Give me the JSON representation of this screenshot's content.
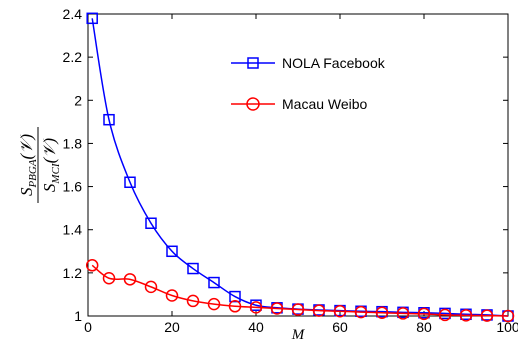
{
  "chart_data": {
    "type": "line",
    "xlabel": "M",
    "ylabel": {
      "numerator": {
        "base": "S",
        "sub": "PBGA",
        "arg": "(𝒱)"
      },
      "denominator": {
        "base": "S",
        "sub": "MCI",
        "arg": "(𝒱)"
      }
    },
    "xlim": [
      0,
      100
    ],
    "ylim": [
      1,
      2.4
    ],
    "xticks": [
      0,
      20,
      40,
      60,
      80,
      100
    ],
    "yticks": [
      1,
      1.2,
      1.4,
      1.6,
      1.8,
      2,
      2.2,
      2.4
    ],
    "xtick_labels": [
      "0",
      "20",
      "40",
      "60",
      "80",
      "100"
    ],
    "ytick_labels": [
      "1",
      "1.2",
      "1.4",
      "1.6",
      "1.8",
      "2",
      "2.2",
      "2.4"
    ],
    "grid": false,
    "legend_position": "upper-right",
    "series": [
      {
        "name": "NOLA Facebook",
        "color": "#0000ff",
        "marker": "square",
        "x": [
          1,
          5,
          10,
          15,
          20,
          25,
          30,
          35,
          40,
          45,
          50,
          55,
          60,
          65,
          70,
          75,
          80,
          85,
          90,
          95,
          100
        ],
        "values": [
          2.38,
          1.91,
          1.62,
          1.43,
          1.3,
          1.22,
          1.155,
          1.09,
          1.05,
          1.038,
          1.032,
          1.028,
          1.025,
          1.022,
          1.02,
          1.017,
          1.015,
          1.012,
          1.008,
          1.005,
          1.0
        ]
      },
      {
        "name": "Macau Weibo",
        "color": "#ff0000",
        "marker": "circle",
        "x": [
          1,
          5,
          10,
          15,
          20,
          25,
          30,
          35,
          40,
          45,
          50,
          55,
          60,
          65,
          70,
          75,
          80,
          85,
          90,
          95,
          100
        ],
        "values": [
          1.235,
          1.175,
          1.17,
          1.135,
          1.095,
          1.07,
          1.055,
          1.045,
          1.04,
          1.035,
          1.03,
          1.025,
          1.022,
          1.018,
          1.015,
          1.012,
          1.01,
          1.005,
          1.003,
          1.002,
          1.0
        ]
      }
    ]
  }
}
